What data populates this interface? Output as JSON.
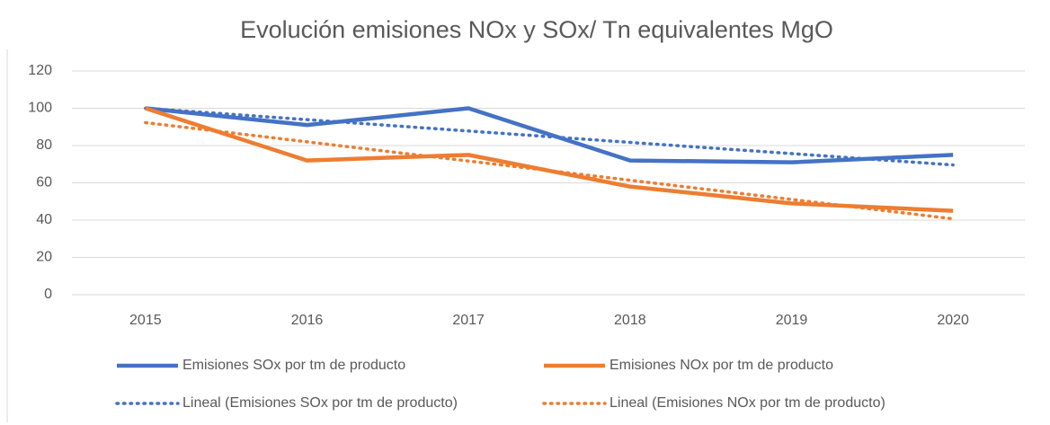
{
  "chart_data": {
    "type": "line",
    "title": "Evolución emisiones NOx y SOx/ Tn equivalentes MgO",
    "categories": [
      "2015",
      "2016",
      "2017",
      "2018",
      "2019",
      "2020"
    ],
    "series": [
      {
        "name": "Emisiones SOx por tm de producto",
        "color": "#4472c4",
        "dash": "solid",
        "values": [
          100,
          91,
          100,
          72,
          71,
          75
        ]
      },
      {
        "name": "Emisiones NOx por tm de producto",
        "color": "#ed7d31",
        "dash": "solid",
        "values": [
          100,
          72,
          75,
          58,
          49,
          45
        ]
      },
      {
        "name": "Lineal (Emisiones SOx por tm de producto)",
        "color": "#4472c4",
        "dash": "dotted",
        "values": [
          100,
          93.9,
          87.8,
          81.7,
          75.7,
          69.6
        ]
      },
      {
        "name": "Lineal (Emisiones NOx por tm de producto)",
        "color": "#ed7d31",
        "dash": "dotted",
        "values": [
          92.3,
          82.0,
          71.7,
          61.4,
          51.1,
          40.7
        ]
      }
    ],
    "ylim": [
      0,
      120
    ],
    "yticks": [
      0,
      20,
      40,
      60,
      80,
      100,
      120
    ],
    "grid": true,
    "legend": "bottom"
  }
}
